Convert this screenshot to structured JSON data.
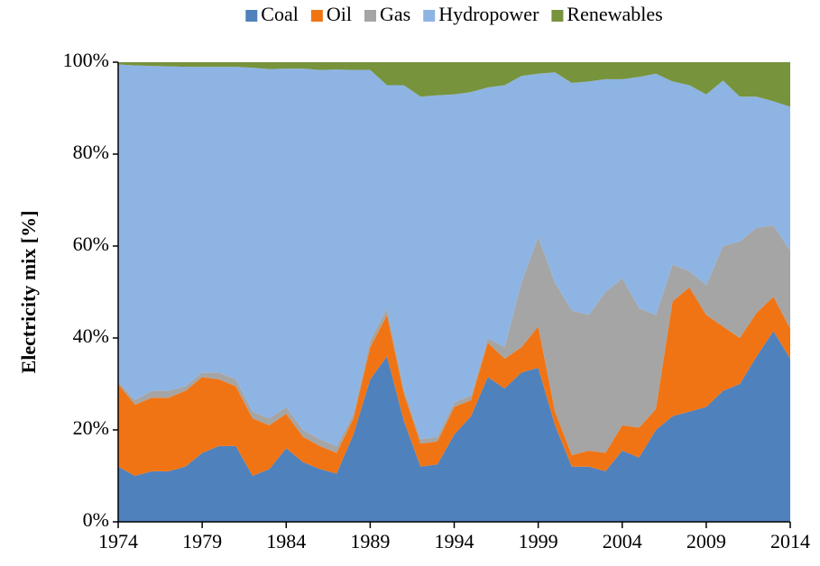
{
  "chart_data": {
    "type": "stacked_area",
    "ylabel": "Electricity mix [%]",
    "x": [
      1974,
      1975,
      1976,
      1977,
      1978,
      1979,
      1980,
      1981,
      1982,
      1983,
      1984,
      1985,
      1986,
      1987,
      1988,
      1989,
      1990,
      1991,
      1992,
      1993,
      1994,
      1995,
      1996,
      1997,
      1998,
      1999,
      2000,
      2001,
      2002,
      2003,
      2004,
      2005,
      2006,
      2007,
      2008,
      2009,
      2010,
      2011,
      2012,
      2013,
      2014
    ],
    "series": [
      {
        "name": "Coal",
        "color": "#4f81bd",
        "values": [
          12,
          10,
          11,
          11,
          12,
          15,
          16.5,
          16.5,
          10,
          11.5,
          16,
          13,
          11.5,
          10.5,
          19,
          31,
          36,
          22,
          12,
          12.5,
          19,
          23,
          31.5,
          29,
          32.5,
          33.5,
          21,
          12,
          12,
          11,
          15.5,
          14,
          20,
          23,
          24,
          25,
          28.5,
          30,
          36,
          41.5,
          35.5
        ]
      },
      {
        "name": "Oil",
        "color": "#f07414",
        "values": [
          18,
          15.5,
          16,
          16,
          16.5,
          16.5,
          14.5,
          13,
          12.5,
          9.5,
          7.5,
          5.5,
          5,
          4.5,
          3.5,
          7,
          9,
          6,
          5,
          5,
          6,
          3.5,
          7.5,
          6.5,
          5.5,
          9,
          3,
          2.5,
          3.5,
          4,
          5.5,
          6.5,
          4.5,
          25,
          27,
          20,
          14,
          10,
          9.5,
          7.5,
          6.5
        ]
      },
      {
        "name": "Gas",
        "color": "#a5a5a5",
        "values": [
          0.5,
          1,
          1.5,
          1.5,
          1,
          1,
          1.5,
          1.5,
          1.5,
          1.5,
          1.5,
          1.5,
          1.5,
          1.5,
          1,
          1.5,
          1.5,
          1,
          1,
          1,
          1,
          1,
          1,
          2.5,
          14,
          19.5,
          28,
          31.5,
          29.5,
          35,
          32,
          26,
          20.5,
          8,
          3.5,
          6.5,
          17.5,
          21,
          18.5,
          15.5,
          17
        ]
      },
      {
        "name": "Hydropower",
        "color": "#8eb4e3",
        "values": [
          69,
          72.8,
          70.7,
          70.6,
          69.5,
          66.5,
          66.5,
          68,
          74.8,
          76,
          73.6,
          78.6,
          80.3,
          81.9,
          74.8,
          58.8,
          48.5,
          66,
          74.5,
          74.3,
          67,
          66,
          54.5,
          57,
          45,
          35.5,
          45.8,
          49.5,
          50.8,
          46.3,
          43.3,
          50.3,
          52.5,
          39.8,
          40.5,
          41.5,
          36,
          31.5,
          28.5,
          27,
          31.3
        ]
      },
      {
        "name": "Renewables",
        "color": "#77933c",
        "values": [
          0.5,
          0.7,
          0.8,
          0.9,
          1,
          1,
          1,
          1,
          1.2,
          1.5,
          1.4,
          1.4,
          1.7,
          1.6,
          1.7,
          1.7,
          5,
          5,
          7.5,
          7.2,
          7,
          6.5,
          5.5,
          5,
          3,
          2.5,
          2.2,
          4.5,
          4.2,
          3.7,
          3.7,
          3.2,
          2.5,
          4.2,
          5,
          7,
          4,
          7.5,
          7.5,
          8.5,
          9.7
        ]
      }
    ],
    "xlim": [
      1974,
      2014
    ],
    "xticks": [
      1974,
      1979,
      1984,
      1989,
      1994,
      1999,
      2004,
      2009,
      2014
    ],
    "ylim": [
      0,
      100
    ],
    "yticks": [
      {
        "value": 0,
        "label": "0%"
      },
      {
        "value": 20,
        "label": "20%"
      },
      {
        "value": 40,
        "label": "40%"
      },
      {
        "value": 60,
        "label": "60%"
      },
      {
        "value": 80,
        "label": "80%"
      },
      {
        "value": 100,
        "label": "100%"
      }
    ],
    "legend": "top"
  }
}
